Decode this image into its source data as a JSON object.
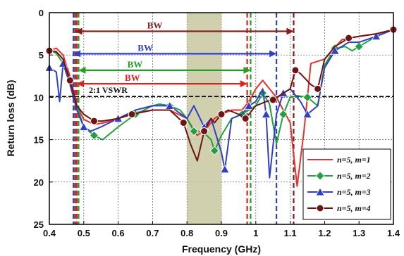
{
  "chart_data": {
    "type": "line",
    "title": "",
    "xlabel": "Frequency (GHz)",
    "ylabel": "Return loss (dB)",
    "xlim": [
      0.4,
      1.4
    ],
    "ylim": [
      0,
      25
    ],
    "y_inverted": true,
    "x_ticks": [
      "0.4",
      "0.5",
      "0.6",
      "0.7",
      "0.8",
      "0.9",
      "1",
      "1.1",
      "1.2",
      "1.3",
      "1.4"
    ],
    "y_ticks": [
      "0",
      "5",
      "10",
      "15",
      "20",
      "25"
    ],
    "grid": "dotted",
    "legend_position": "bottom-right",
    "shaded_band": {
      "x_range": [
        0.8,
        0.9
      ],
      "color": "#c8c8a0"
    },
    "reference_line": {
      "label": "2:1 VSWR",
      "y": 9.9,
      "color": "#000000"
    },
    "bandwidth_markers": [
      {
        "label": "BW",
        "x_range": [
          0.475,
          1.11
        ],
        "color": "#8b1a1a"
      },
      {
        "label": "BW",
        "x_range": [
          0.47,
          1.06
        ],
        "color": "#3040c0"
      },
      {
        "label": "BW",
        "x_range": [
          0.485,
          0.985
        ],
        "color": "#20a020"
      },
      {
        "label": "BW",
        "x_range": [
          0.48,
          0.975
        ],
        "color": "#e02020"
      }
    ],
    "series": [
      {
        "name": "n=5, m=1",
        "color": "#e8302a",
        "marker": "none",
        "x": [
          0.4,
          0.42,
          0.44,
          0.46,
          0.48,
          0.5,
          0.53,
          0.56,
          0.6,
          0.65,
          0.7,
          0.75,
          0.8,
          0.83,
          0.86,
          0.88,
          0.9,
          0.93,
          0.96,
          0.98,
          1.0,
          1.02,
          1.04,
          1.06,
          1.08,
          1.1,
          1.12,
          1.14,
          1.16,
          1.2,
          1.25,
          1.3,
          1.35,
          1.4
        ],
        "values": [
          4.5,
          4.2,
          5.0,
          7.5,
          11.0,
          12.6,
          13.2,
          13.0,
          12.5,
          11.8,
          11.5,
          11.5,
          12.5,
          14.5,
          13.5,
          12.5,
          12.0,
          11.5,
          11.5,
          10.5,
          9.0,
          8.0,
          9.0,
          10.0,
          11.5,
          13.0,
          20.5,
          14.0,
          6.0,
          5.5,
          3.2,
          2.8,
          2.5,
          2.0
        ]
      },
      {
        "name": "n=5, m=2",
        "color": "#20a040",
        "marker": "diamond",
        "x": [
          0.4,
          0.42,
          0.44,
          0.46,
          0.48,
          0.5,
          0.53,
          0.555,
          0.6,
          0.65,
          0.7,
          0.72,
          0.75,
          0.78,
          0.8,
          0.82,
          0.845,
          0.87,
          0.88,
          0.9,
          0.93,
          0.96,
          0.98,
          1.0,
          1.02,
          1.04,
          1.06,
          1.08,
          1.1,
          1.12,
          1.15,
          1.18,
          1.2,
          1.23,
          1.26,
          1.28,
          1.3,
          1.35,
          1.4
        ],
        "values": [
          4.4,
          4.8,
          6.0,
          8.0,
          11.0,
          13.5,
          14.5,
          15.0,
          13.5,
          12.0,
          11.0,
          10.8,
          11.0,
          11.5,
          12.5,
          14.0,
          14.0,
          15.0,
          16.3,
          14.5,
          12.5,
          12.0,
          11.5,
          11.0,
          9.5,
          10.8,
          15.5,
          12.0,
          10.0,
          9.8,
          10.0,
          11.0,
          6.2,
          4.2,
          4.0,
          4.5,
          4.0,
          2.8,
          2.0
        ]
      },
      {
        "name": "n=5, m=3",
        "color": "#3040c0",
        "marker": "triangle",
        "x": [
          0.4,
          0.42,
          0.43,
          0.44,
          0.46,
          0.48,
          0.5,
          0.52,
          0.55,
          0.6,
          0.65,
          0.7,
          0.75,
          0.8,
          0.82,
          0.85,
          0.87,
          0.9,
          0.91,
          0.93,
          0.96,
          0.98,
          1.0,
          1.02,
          1.03,
          1.04,
          1.06,
          1.08,
          1.1,
          1.13,
          1.15,
          1.18,
          1.2,
          1.23,
          1.27,
          1.3,
          1.35,
          1.4
        ],
        "values": [
          6.5,
          7.0,
          10.5,
          6.0,
          8.5,
          11.5,
          13.5,
          14.0,
          13.5,
          12.5,
          11.5,
          11.0,
          11.0,
          12.5,
          11.0,
          13.5,
          12.5,
          16.5,
          18.5,
          12.5,
          12.0,
          11.0,
          10.5,
          9.0,
          12.0,
          19.5,
          12.0,
          9.5,
          9.0,
          10.5,
          12.0,
          11.0,
          6.5,
          4.5,
          3.5,
          3.5,
          2.8,
          2.0
        ]
      },
      {
        "name": "n=5, m=4",
        "color": "#6e1414",
        "marker": "circle",
        "x": [
          0.4,
          0.42,
          0.44,
          0.46,
          0.48,
          0.5,
          0.53,
          0.555,
          0.6,
          0.64,
          0.7,
          0.75,
          0.79,
          0.81,
          0.83,
          0.85,
          0.87,
          0.88,
          0.9,
          0.92,
          0.95,
          0.97,
          1.0,
          1.03,
          1.05,
          1.08,
          1.1,
          1.115,
          1.13,
          1.16,
          1.18,
          1.2,
          1.23,
          1.27,
          1.3,
          1.35,
          1.4
        ],
        "values": [
          4.5,
          4.6,
          5.5,
          8.0,
          11.0,
          12.0,
          12.8,
          12.8,
          12.5,
          12.0,
          11.5,
          11.5,
          13.0,
          15.5,
          17.5,
          14.0,
          12.5,
          13.0,
          12.0,
          11.5,
          12.0,
          12.5,
          11.0,
          10.5,
          10.3,
          9.5,
          9.0,
          6.8,
          7.2,
          8.5,
          9.0,
          5.5,
          4.0,
          3.0,
          2.8,
          2.5,
          2.0
        ]
      }
    ]
  }
}
